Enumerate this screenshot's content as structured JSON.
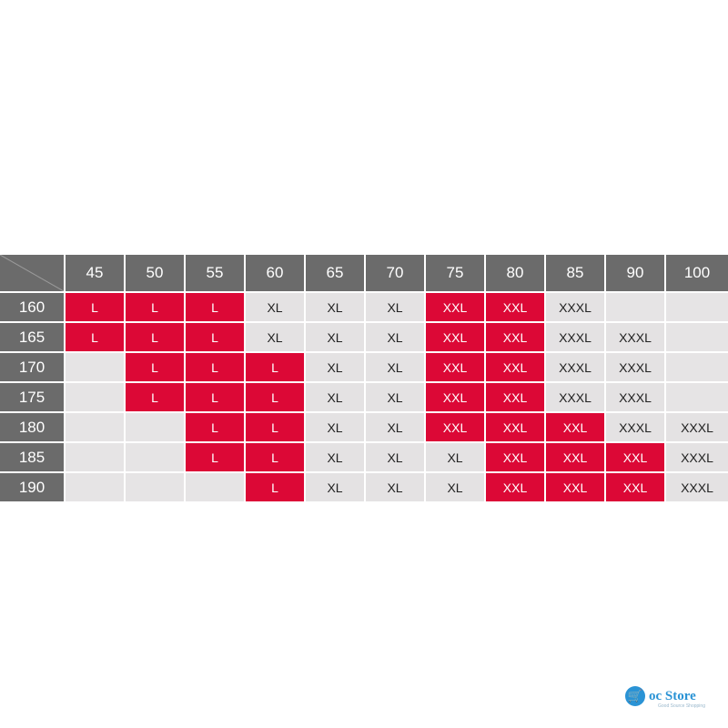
{
  "chart": {
    "corner": "",
    "weights": [
      "45",
      "50",
      "55",
      "60",
      "65",
      "70",
      "75",
      "80",
      "85",
      "90",
      "100"
    ],
    "rows": [
      {
        "height": "160",
        "cells": [
          "L",
          "L",
          "L",
          "XL",
          "XL",
          "XL",
          "XXL",
          "XXL",
          "XXXL",
          "",
          ""
        ]
      },
      {
        "height": "165",
        "cells": [
          "L",
          "L",
          "L",
          "XL",
          "XL",
          "XL",
          "XXL",
          "XXL",
          "XXXL",
          "XXXL",
          ""
        ]
      },
      {
        "height": "170",
        "cells": [
          "",
          "L",
          "L",
          "L",
          "XL",
          "XL",
          "XXL",
          "XXL",
          "XXXL",
          "XXXL",
          ""
        ]
      },
      {
        "height": "175",
        "cells": [
          "",
          "L",
          "L",
          "L",
          "XL",
          "XL",
          "XXL",
          "XXL",
          "XXXL",
          "XXXL",
          ""
        ]
      },
      {
        "height": "180",
        "cells": [
          "",
          "",
          "L",
          "L",
          "XL",
          "XL",
          "XXL",
          "XXL",
          "XXL",
          "XXXL",
          "XXXL"
        ]
      },
      {
        "height": "185",
        "cells": [
          "",
          "",
          "L",
          "L",
          "XL",
          "XL",
          "XL",
          "XXL",
          "XXL",
          "XXL",
          "XXXL"
        ]
      },
      {
        "height": "190",
        "cells": [
          "",
          "",
          "",
          "L",
          "XL",
          "XL",
          "XL",
          "XXL",
          "XXL",
          "XXL",
          "XXXL"
        ]
      }
    ],
    "highlighted": [
      [
        true,
        true,
        true,
        false,
        false,
        false,
        true,
        true,
        false,
        false,
        false
      ],
      [
        true,
        true,
        true,
        false,
        false,
        false,
        true,
        true,
        false,
        false,
        false
      ],
      [
        false,
        true,
        true,
        true,
        false,
        false,
        true,
        true,
        false,
        false,
        false
      ],
      [
        false,
        true,
        true,
        true,
        false,
        false,
        true,
        true,
        false,
        false,
        false
      ],
      [
        false,
        false,
        true,
        true,
        false,
        false,
        true,
        true,
        true,
        false,
        false
      ],
      [
        false,
        false,
        true,
        true,
        false,
        false,
        false,
        true,
        true,
        true,
        false
      ],
      [
        false,
        false,
        false,
        true,
        false,
        false,
        false,
        true,
        true,
        true,
        false
      ]
    ],
    "colors": {
      "header_bg": "#6b6b6b",
      "highlight": "#dc0836",
      "plain": "#e4e2e3"
    }
  },
  "logo": {
    "icon": "shopping-cart-icon",
    "name": "oc Store",
    "tagline": "Good Source Shopping"
  }
}
